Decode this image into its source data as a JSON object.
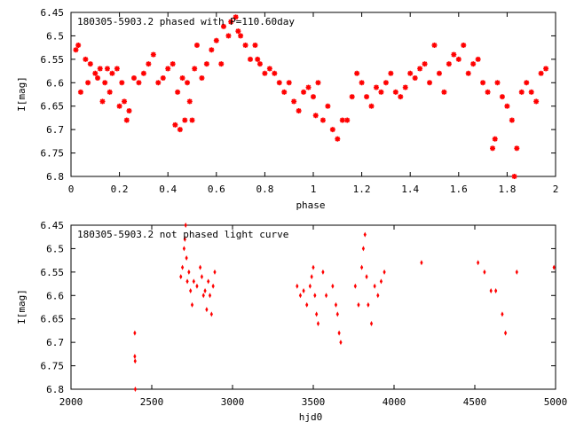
{
  "chart_data": [
    {
      "type": "scatter",
      "title": "180305-5903.2 phased with P=110.60day",
      "xlabel": "phase",
      "ylabel": "I[mag]",
      "xlim": [
        0,
        2
      ],
      "ylim": [
        6.45,
        6.8
      ],
      "y_inverted": true,
      "marker_color": "#ff0000",
      "marker": "star",
      "xticks": [
        "0",
        "0.2",
        "0.4",
        "0.6",
        "0.8",
        "1",
        "1.2",
        "1.4",
        "1.6",
        "1.8",
        "2"
      ],
      "yticks": [
        "6.45",
        "6.5",
        "6.55",
        "6.6",
        "6.65",
        "6.7",
        "6.75",
        "6.8"
      ],
      "points": [
        [
          0.02,
          6.53
        ],
        [
          0.03,
          6.52
        ],
        [
          0.04,
          6.62
        ],
        [
          0.06,
          6.55
        ],
        [
          0.07,
          6.6
        ],
        [
          0.08,
          6.56
        ],
        [
          0.1,
          6.58
        ],
        [
          0.11,
          6.59
        ],
        [
          0.12,
          6.57
        ],
        [
          0.13,
          6.64
        ],
        [
          0.14,
          6.6
        ],
        [
          0.15,
          6.57
        ],
        [
          0.16,
          6.62
        ],
        [
          0.17,
          6.58
        ],
        [
          0.19,
          6.57
        ],
        [
          0.2,
          6.65
        ],
        [
          0.21,
          6.6
        ],
        [
          0.22,
          6.64
        ],
        [
          0.23,
          6.68
        ],
        [
          0.24,
          6.66
        ],
        [
          0.26,
          6.59
        ],
        [
          0.28,
          6.6
        ],
        [
          0.3,
          6.58
        ],
        [
          0.32,
          6.56
        ],
        [
          0.34,
          6.54
        ],
        [
          0.36,
          6.6
        ],
        [
          0.38,
          6.59
        ],
        [
          0.4,
          6.57
        ],
        [
          0.42,
          6.56
        ],
        [
          0.43,
          6.69
        ],
        [
          0.44,
          6.62
        ],
        [
          0.45,
          6.7
        ],
        [
          0.46,
          6.59
        ],
        [
          0.47,
          6.68
        ],
        [
          0.48,
          6.6
        ],
        [
          0.49,
          6.64
        ],
        [
          0.5,
          6.68
        ],
        [
          0.51,
          6.57
        ],
        [
          0.52,
          6.52
        ],
        [
          0.54,
          6.59
        ],
        [
          0.56,
          6.56
        ],
        [
          0.58,
          6.53
        ],
        [
          0.6,
          6.51
        ],
        [
          0.62,
          6.56
        ],
        [
          0.63,
          6.48
        ],
        [
          0.65,
          6.5
        ],
        [
          0.66,
          6.47
        ],
        [
          0.68,
          6.46
        ],
        [
          0.69,
          6.49
        ],
        [
          0.7,
          6.5
        ],
        [
          0.72,
          6.52
        ],
        [
          0.74,
          6.55
        ],
        [
          0.76,
          6.52
        ],
        [
          0.77,
          6.55
        ],
        [
          0.78,
          6.56
        ],
        [
          0.8,
          6.58
        ],
        [
          0.82,
          6.57
        ],
        [
          0.84,
          6.58
        ],
        [
          0.86,
          6.6
        ],
        [
          0.88,
          6.62
        ],
        [
          0.9,
          6.6
        ],
        [
          0.92,
          6.64
        ],
        [
          0.94,
          6.66
        ],
        [
          0.96,
          6.62
        ],
        [
          0.98,
          6.61
        ],
        [
          1.0,
          6.63
        ],
        [
          1.01,
          6.67
        ],
        [
          1.02,
          6.6
        ],
        [
          1.04,
          6.68
        ],
        [
          1.06,
          6.65
        ],
        [
          1.08,
          6.7
        ],
        [
          1.1,
          6.72
        ],
        [
          1.12,
          6.68
        ],
        [
          1.14,
          6.68
        ],
        [
          1.16,
          6.63
        ],
        [
          1.18,
          6.58
        ],
        [
          1.2,
          6.6
        ],
        [
          1.22,
          6.63
        ],
        [
          1.24,
          6.65
        ],
        [
          1.26,
          6.61
        ],
        [
          1.28,
          6.62
        ],
        [
          1.3,
          6.6
        ],
        [
          1.32,
          6.58
        ],
        [
          1.34,
          6.62
        ],
        [
          1.36,
          6.63
        ],
        [
          1.38,
          6.61
        ],
        [
          1.4,
          6.58
        ],
        [
          1.42,
          6.59
        ],
        [
          1.44,
          6.57
        ],
        [
          1.46,
          6.56
        ],
        [
          1.48,
          6.6
        ],
        [
          1.5,
          6.52
        ],
        [
          1.52,
          6.58
        ],
        [
          1.54,
          6.62
        ],
        [
          1.56,
          6.56
        ],
        [
          1.58,
          6.54
        ],
        [
          1.6,
          6.55
        ],
        [
          1.62,
          6.52
        ],
        [
          1.64,
          6.58
        ],
        [
          1.66,
          6.56
        ],
        [
          1.68,
          6.55
        ],
        [
          1.7,
          6.6
        ],
        [
          1.72,
          6.62
        ],
        [
          1.74,
          6.74
        ],
        [
          1.75,
          6.72
        ],
        [
          1.76,
          6.6
        ],
        [
          1.78,
          6.63
        ],
        [
          1.8,
          6.65
        ],
        [
          1.82,
          6.68
        ],
        [
          1.83,
          6.8
        ],
        [
          1.84,
          6.74
        ],
        [
          1.86,
          6.62
        ],
        [
          1.88,
          6.6
        ],
        [
          1.9,
          6.62
        ],
        [
          1.92,
          6.64
        ],
        [
          1.94,
          6.58
        ],
        [
          1.96,
          6.57
        ]
      ]
    },
    {
      "type": "scatter",
      "title": "180305-5903.2 not phased light curve",
      "xlabel": "hjd0",
      "ylabel": "I[mag]",
      "xlim": [
        2000,
        5000
      ],
      "ylim": [
        6.45,
        6.8
      ],
      "y_inverted": true,
      "marker_color": "#ff0000",
      "marker": "diamond",
      "xticks": [
        "2000",
        "2500",
        "3000",
        "3500",
        "4000",
        "4500",
        "5000"
      ],
      "yticks": [
        "6.45",
        "6.5",
        "6.55",
        "6.6",
        "6.65",
        "6.7",
        "6.75",
        "6.8"
      ],
      "points": [
        [
          2395,
          6.68
        ],
        [
          2395,
          6.73
        ],
        [
          2397,
          6.74
        ],
        [
          2398,
          6.8
        ],
        [
          2680,
          6.56
        ],
        [
          2690,
          6.54
        ],
        [
          2700,
          6.5
        ],
        [
          2705,
          6.48
        ],
        [
          2710,
          6.45
        ],
        [
          2715,
          6.52
        ],
        [
          2720,
          6.57
        ],
        [
          2730,
          6.55
        ],
        [
          2740,
          6.59
        ],
        [
          2750,
          6.62
        ],
        [
          2760,
          6.57
        ],
        [
          2780,
          6.58
        ],
        [
          2800,
          6.54
        ],
        [
          2810,
          6.56
        ],
        [
          2820,
          6.6
        ],
        [
          2830,
          6.59
        ],
        [
          2840,
          6.63
        ],
        [
          2850,
          6.57
        ],
        [
          2860,
          6.6
        ],
        [
          2870,
          6.64
        ],
        [
          2880,
          6.58
        ],
        [
          2890,
          6.55
        ],
        [
          3400,
          6.58
        ],
        [
          3420,
          6.6
        ],
        [
          3440,
          6.59
        ],
        [
          3460,
          6.62
        ],
        [
          3480,
          6.58
        ],
        [
          3490,
          6.56
        ],
        [
          3500,
          6.54
        ],
        [
          3510,
          6.6
        ],
        [
          3520,
          6.64
        ],
        [
          3530,
          6.66
        ],
        [
          3560,
          6.55
        ],
        [
          3580,
          6.6
        ],
        [
          3620,
          6.58
        ],
        [
          3640,
          6.62
        ],
        [
          3650,
          6.64
        ],
        [
          3660,
          6.68
        ],
        [
          3670,
          6.7
        ],
        [
          3760,
          6.58
        ],
        [
          3780,
          6.62
        ],
        [
          3800,
          6.54
        ],
        [
          3810,
          6.5
        ],
        [
          3820,
          6.47
        ],
        [
          3830,
          6.56
        ],
        [
          3840,
          6.62
        ],
        [
          3860,
          6.66
        ],
        [
          3880,
          6.58
        ],
        [
          3900,
          6.6
        ],
        [
          3920,
          6.57
        ],
        [
          3940,
          6.55
        ],
        [
          4170,
          6.53
        ],
        [
          4520,
          6.53
        ],
        [
          4560,
          6.55
        ],
        [
          4600,
          6.59
        ],
        [
          4630,
          6.59
        ],
        [
          4670,
          6.64
        ],
        [
          4690,
          6.68
        ],
        [
          4760,
          6.55
        ],
        [
          4990,
          6.54
        ]
      ]
    }
  ]
}
